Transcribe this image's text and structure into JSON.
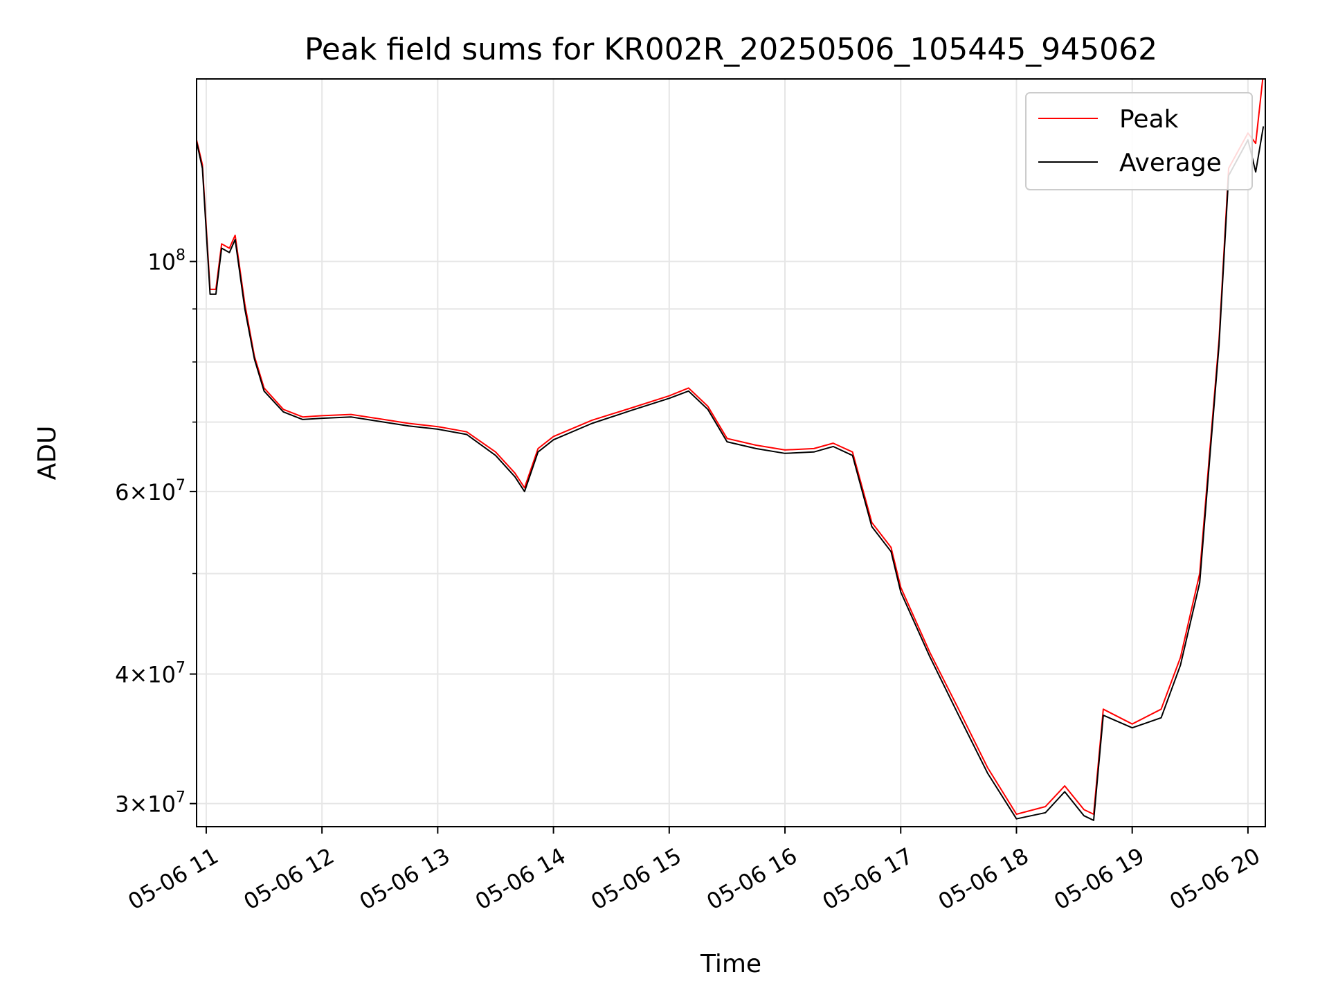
{
  "chart_data": {
    "type": "line",
    "title": "Peak field sums for KR002R_20250506_105445_945062",
    "xlabel": "Time",
    "ylabel": "ADU",
    "yscale": "log",
    "ylim": [
      28500000,
      150000000
    ],
    "xlim": [
      "2025-05-06 10:55",
      "2025-05-06 20:09"
    ],
    "grid": true,
    "legend_position": "top-right",
    "x_ticks": [
      "05-06 11",
      "05-06 12",
      "05-06 13",
      "05-06 14",
      "05-06 15",
      "05-06 16",
      "05-06 17",
      "05-06 18",
      "05-06 19",
      "05-06 20"
    ],
    "y_ticks": [
      {
        "value": 30000000,
        "mantissa": "3",
        "exponent": "7"
      },
      {
        "value": 40000000,
        "mantissa": "4",
        "exponent": "7"
      },
      {
        "value": 60000000,
        "mantissa": "6",
        "exponent": "7"
      },
      {
        "value": 100000000,
        "mantissa": "",
        "exponent": "8"
      }
    ],
    "x": [
      "2025-05-06 10:55",
      "2025-05-06 10:58",
      "2025-05-06 11:02",
      "2025-05-06 11:05",
      "2025-05-06 11:08",
      "2025-05-06 11:12",
      "2025-05-06 11:15",
      "2025-05-06 11:20",
      "2025-05-06 11:25",
      "2025-05-06 11:30",
      "2025-05-06 11:40",
      "2025-05-06 11:50",
      "2025-05-06 12:00",
      "2025-05-06 12:15",
      "2025-05-06 12:30",
      "2025-05-06 12:45",
      "2025-05-06 13:00",
      "2025-05-06 13:15",
      "2025-05-06 13:30",
      "2025-05-06 13:40",
      "2025-05-06 13:45",
      "2025-05-06 13:52",
      "2025-05-06 14:00",
      "2025-05-06 14:20",
      "2025-05-06 14:40",
      "2025-05-06 15:00",
      "2025-05-06 15:10",
      "2025-05-06 15:20",
      "2025-05-06 15:30",
      "2025-05-06 15:45",
      "2025-05-06 16:00",
      "2025-05-06 16:15",
      "2025-05-06 16:25",
      "2025-05-06 16:35",
      "2025-05-06 16:45",
      "2025-05-06 16:55",
      "2025-05-06 17:00",
      "2025-05-06 17:15",
      "2025-05-06 17:30",
      "2025-05-06 17:45",
      "2025-05-06 18:00",
      "2025-05-06 18:15",
      "2025-05-06 18:25",
      "2025-05-06 18:35",
      "2025-05-06 18:40",
      "2025-05-06 18:45",
      "2025-05-06 19:00",
      "2025-05-06 19:15",
      "2025-05-06 19:25",
      "2025-05-06 19:35",
      "2025-05-06 19:40",
      "2025-05-06 19:45",
      "2025-05-06 19:50",
      "2025-05-06 20:00",
      "2025-05-06 20:04",
      "2025-05-06 20:08"
    ],
    "series": [
      {
        "name": "Peak",
        "color": "#ff0000",
        "values": [
          131000000,
          124000000,
          94000000,
          94000000,
          104000000,
          103000000,
          106000000,
          91000000,
          81000000,
          75500000,
          72000000,
          70800000,
          71000000,
          71200000,
          70500000,
          69800000,
          69300000,
          68500000,
          65500000,
          62500000,
          60500000,
          66000000,
          67800000,
          70300000,
          72200000,
          74200000,
          75500000,
          72500000,
          67500000,
          66500000,
          65800000,
          66000000,
          66800000,
          65500000,
          56000000,
          53000000,
          48500000,
          42000000,
          37000000,
          32500000,
          29300000,
          29800000,
          31200000,
          29600000,
          29300000,
          37000000,
          35800000,
          37000000,
          41500000,
          50000000,
          65000000,
          84000000,
          123000000,
          133000000,
          130000000,
          152000000
        ]
      },
      {
        "name": "Average",
        "color": "#000000",
        "values": [
          130500000,
          123000000,
          93000000,
          93000000,
          103000000,
          102000000,
          105000000,
          90000000,
          80500000,
          75000000,
          71600000,
          70400000,
          70600000,
          70800000,
          70100000,
          69400000,
          68900000,
          68100000,
          65000000,
          62000000,
          60000000,
          65500000,
          67300000,
          69800000,
          71800000,
          73800000,
          75000000,
          72000000,
          67000000,
          66000000,
          65300000,
          65500000,
          66300000,
          65000000,
          55500000,
          52500000,
          48000000,
          41600000,
          36500000,
          32100000,
          29000000,
          29400000,
          30800000,
          29200000,
          28900000,
          36500000,
          35500000,
          36300000,
          40800000,
          49000000,
          64000000,
          83000000,
          121000000,
          131000000,
          122000000,
          135000000
        ]
      }
    ]
  }
}
